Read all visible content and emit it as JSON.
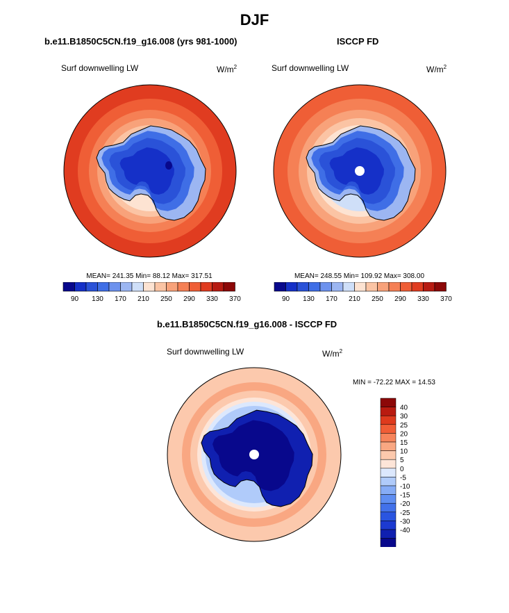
{
  "page": {
    "title": "DJF",
    "model_title": "b.e11.B1850C5CN.f19_g16.008 (yrs 981-1000)",
    "obs_title": "ISCCP FD",
    "diff_title": "b.e11.B1850C5CN.f19_g16.008 - ISCCP FD"
  },
  "colors": {
    "abs_palette": [
      "#08088c",
      "#1530c8",
      "#2a52d8",
      "#3f6ee6",
      "#6d92ee",
      "#9cb6f2",
      "#cfdff8",
      "#fde3d2",
      "#fbc4a4",
      "#f8a27a",
      "#f58055",
      "#ef5e36",
      "#e03c20",
      "#b71b12",
      "#8c0808"
    ],
    "diff_palette": [
      "#08088c",
      "#1020b0",
      "#1c3ad0",
      "#2a55e0",
      "#4271ea",
      "#5f8ef2",
      "#86acf6",
      "#b0cbfa",
      "#dce8fd",
      "#fde5d8",
      "#fcc9ad",
      "#f9a782",
      "#f6845b",
      "#f05d36",
      "#de3a1d",
      "#b91b10",
      "#8c0808"
    ]
  },
  "chart_data": [
    {
      "type": "heatmap",
      "name": "model",
      "projection": "south-polar-stereographic",
      "variable": "Surf downwelling LW",
      "units": "W/m",
      "units_sup": "2",
      "stats_text": "MEAN= 241.35  Min=  88.12  Max= 317.51",
      "mean": 241.35,
      "min": 88.12,
      "max": 317.51,
      "levels": [
        90,
        110,
        130,
        150,
        170,
        190,
        210,
        230,
        250,
        270,
        290,
        310,
        330,
        350,
        370
      ],
      "colorbar_tick_labels": [
        "90",
        "130",
        "170",
        "210",
        "250",
        "290",
        "330",
        "370"
      ],
      "pole_missing": false
    },
    {
      "type": "heatmap",
      "name": "obs",
      "projection": "south-polar-stereographic",
      "variable": "Surf downwelling LW",
      "units": "W/m",
      "units_sup": "2",
      "stats_text": "MEAN= 248.55  Min= 109.92  Max= 308.00",
      "mean": 248.55,
      "min": 109.92,
      "max": 308.0,
      "levels": [
        90,
        110,
        130,
        150,
        170,
        190,
        210,
        230,
        250,
        270,
        290,
        310,
        330,
        350,
        370
      ],
      "colorbar_tick_labels": [
        "90",
        "130",
        "170",
        "210",
        "250",
        "290",
        "330",
        "370"
      ],
      "pole_missing": true
    },
    {
      "type": "heatmap",
      "name": "difference",
      "projection": "south-polar-stereographic",
      "variable": "Surf downwelling LW",
      "units": "W/m",
      "units_sup": "2",
      "stats_text": "MIN = -72.22 MAX =  14.53",
      "min": -72.22,
      "max": 14.53,
      "levels": [
        -40,
        -30,
        -25,
        -20,
        -15,
        -10,
        -5,
        0,
        5,
        10,
        15,
        20,
        25,
        30,
        40
      ],
      "colorbar_tick_labels": [
        "40",
        "30",
        "25",
        "20",
        "15",
        "10",
        "5",
        "0",
        "-5",
        "-10",
        "-15",
        "-20",
        "-25",
        "-30",
        "-40"
      ],
      "pole_missing": true
    }
  ]
}
